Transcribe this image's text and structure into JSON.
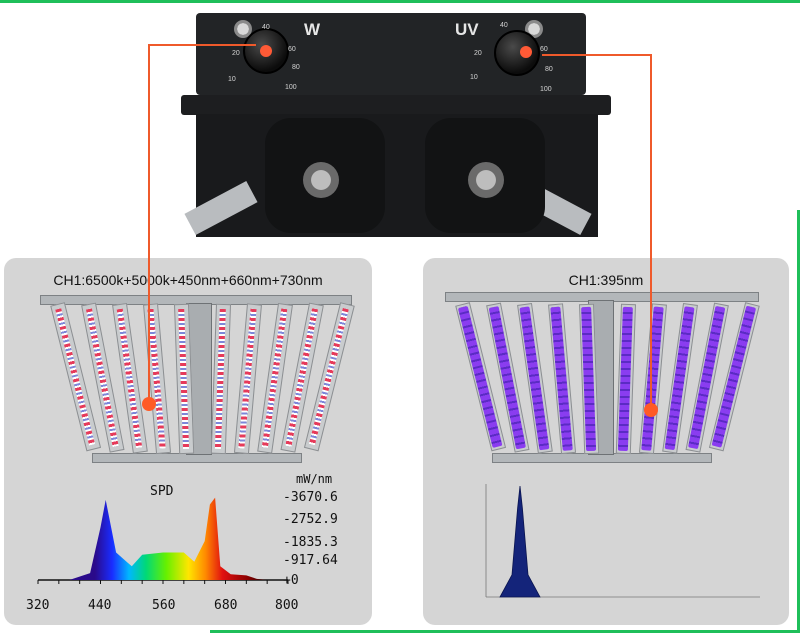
{
  "controller": {
    "label_w": "W",
    "label_uv": "UV",
    "w_scale": [
      "10",
      "20",
      "40",
      "60",
      "80",
      "100"
    ],
    "uv_scale": [
      "10",
      "20",
      "40",
      "60",
      "80",
      "100"
    ]
  },
  "panel_left": {
    "title": "CH1:6500k+5000k+450nm+660nm+730nm",
    "spd_title": "SPD",
    "spd_unit": "mW/nm",
    "spd_values": [
      "-3670.6",
      "-2752.9",
      "-1835.3",
      "-917.64",
      "+0"
    ],
    "x_ticks": [
      "320",
      "440",
      "560",
      "680",
      "800"
    ]
  },
  "panel_right": {
    "title": "CH1:395nm"
  },
  "colors": {
    "pointer": "#ef5a2b",
    "uv_led": "#8a3df0",
    "accent_stripe": "#1fbf5a"
  },
  "chart_data": [
    {
      "type": "area",
      "title": "SPD",
      "xlabel": "",
      "ylabel": "mW/nm",
      "x": [
        380,
        420,
        440,
        450,
        470,
        500,
        520,
        560,
        600,
        620,
        640,
        650,
        660,
        670,
        690,
        720,
        740,
        760
      ],
      "values": [
        0,
        300,
        2300,
        3500,
        1200,
        600,
        1100,
        1200,
        1200,
        800,
        1700,
        3300,
        3600,
        600,
        250,
        200,
        50,
        0
      ],
      "xlim": [
        320,
        800
      ],
      "ylim": [
        0,
        3670.6
      ]
    },
    {
      "type": "area",
      "title": "",
      "xlabel": "",
      "ylabel": "",
      "x": [
        370,
        385,
        392,
        395,
        398,
        405,
        420
      ],
      "values": [
        0,
        0.2,
        0.8,
        1.0,
        0.8,
        0.2,
        0
      ],
      "ylim": [
        0,
        1
      ]
    }
  ]
}
